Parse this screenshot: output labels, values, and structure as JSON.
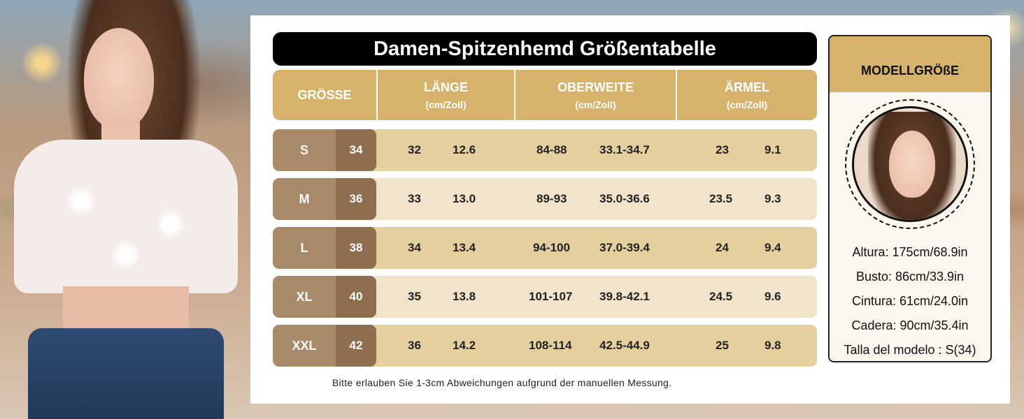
{
  "title": "Damen-Spitzenhemd Größentabelle",
  "columns": {
    "size": {
      "label": "GRÖSSE"
    },
    "length": {
      "label": "LÄNGE",
      "unit": "(cm/Zoll)"
    },
    "bust": {
      "label": "OBERWEITE",
      "unit": "(cm/Zoll)"
    },
    "sleeve": {
      "label": "ÄRMEL",
      "unit": "(cm/Zoll)"
    }
  },
  "rows": [
    {
      "size": "S",
      "eu": "34",
      "length_cm": "32",
      "length_in": "12.6",
      "bust_cm": "84-88",
      "bust_in": "33.1-34.7",
      "sleeve_cm": "23",
      "sleeve_in": "9.1"
    },
    {
      "size": "M",
      "eu": "36",
      "length_cm": "33",
      "length_in": "13.0",
      "bust_cm": "89-93",
      "bust_in": "35.0-36.6",
      "sleeve_cm": "23.5",
      "sleeve_in": "9.3"
    },
    {
      "size": "L",
      "eu": "38",
      "length_cm": "34",
      "length_in": "13.4",
      "bust_cm": "94-100",
      "bust_in": "37.0-39.4",
      "sleeve_cm": "24",
      "sleeve_in": "9.4"
    },
    {
      "size": "XL",
      "eu": "40",
      "length_cm": "35",
      "length_in": "13.8",
      "bust_cm": "101-107",
      "bust_in": "39.8-42.1",
      "sleeve_cm": "24.5",
      "sleeve_in": "9.6"
    },
    {
      "size": "XXL",
      "eu": "42",
      "length_cm": "36",
      "length_in": "14.2",
      "bust_cm": "108-114",
      "bust_in": "42.5-44.9",
      "sleeve_cm": "25",
      "sleeve_in": "9.8"
    }
  ],
  "note": "Bitte erlauben Sie 1-3cm Abweichungen aufgrund der manuellen Messung.",
  "model": {
    "heading": "MODELLGRÖßE",
    "altura": "Altura: 175cm/68.9in",
    "busto": "Busto: 86cm/33.9in",
    "cintura": "Cintura: 61cm/24.0in",
    "cadera": "Cadera: 90cm/35.4in",
    "talla": "Talla del modelo : S(34)"
  },
  "colors": {
    "gold": "#d7b26a",
    "row_dark": "#e6cf9e",
    "row_light": "#f1e4cb",
    "size_brown": "#a88a69",
    "eu_brown": "#8e6e4e"
  }
}
